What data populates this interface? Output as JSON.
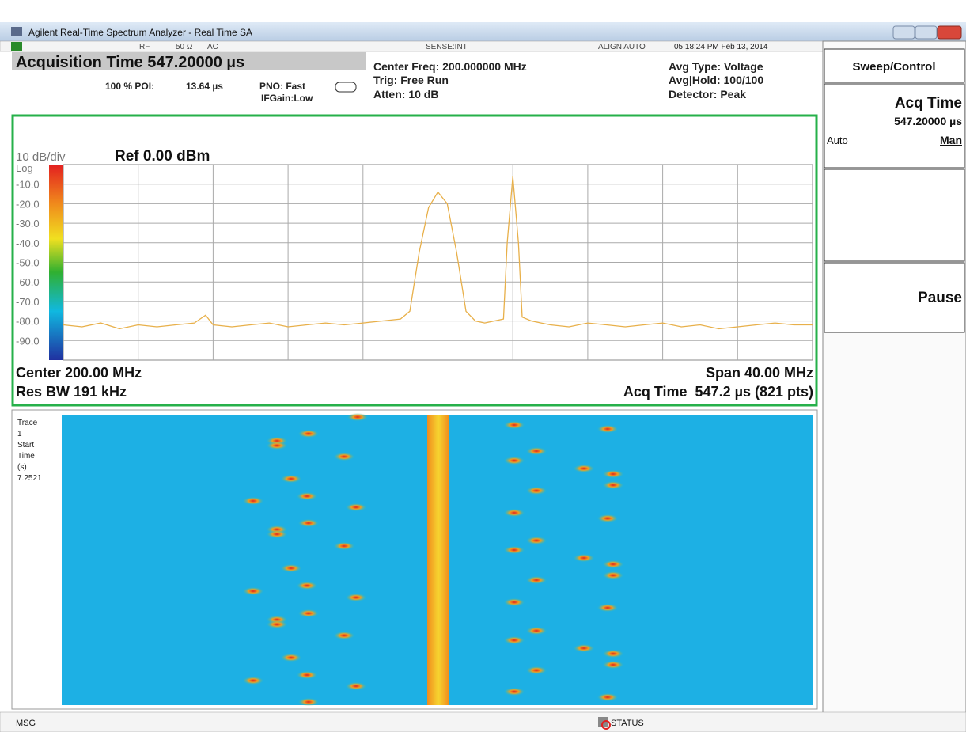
{
  "window": {
    "title": "Agilent Real-Time Spectrum Analyzer - Real Time SA"
  },
  "status_row": [
    "RF",
    "50 Ω",
    "AC",
    "SENSE:INT",
    "ALIGN AUTO",
    "05:18:24 PM Feb 13, 2014"
  ],
  "header": {
    "acquisition": "Acquisition Time 547.20000 µs",
    "poi": "100 % POI:",
    "poi_time": "13.64 µs",
    "pno": "PNO: Fast",
    "ifgain": "IFGain:Low",
    "center_freq": "Center Freq: 200.000000 MHz",
    "trig": "Trig: Free Run",
    "atten": "Atten: 10 dB",
    "avg_type": "Avg Type: Voltage",
    "avg_hold": "Avg|Hold: 100/100",
    "detector": "Detector: Peak"
  },
  "softkeys": {
    "menu": "Sweep/Control",
    "acq_title": "Acq Time",
    "acq_value": "547.20000 µs",
    "auto": "Auto",
    "man": "Man",
    "pause": "Pause"
  },
  "chart_data": {
    "type": "line",
    "scale_label": "10 dB/div",
    "ref_label": "Ref 0.00 dBm",
    "scale_type": "Log",
    "x": [
      180,
      181,
      182,
      183,
      184,
      185,
      186,
      187,
      187.6,
      188,
      189,
      190,
      191,
      192,
      193,
      194,
      195,
      196,
      197,
      198,
      198.5,
      199,
      199.5,
      200,
      200.5,
      201,
      201.5,
      202,
      202.5,
      203,
      203.5,
      203.7,
      204,
      204.3,
      204.5,
      205,
      206,
      207,
      208,
      209,
      210,
      211,
      212,
      213,
      214,
      215,
      216,
      217,
      218,
      219,
      220
    ],
    "series": [
      {
        "color": "#e8b04a",
        "values": [
          -82,
          -83,
          -81,
          -84,
          -82,
          -83,
          -82,
          -81,
          -77,
          -82,
          -83,
          -82,
          -81,
          -83,
          -82,
          -81,
          -82,
          -81,
          -80,
          -79,
          -75,
          -45,
          -22,
          -14,
          -20,
          -45,
          -75,
          -80,
          -81,
          -80,
          -79,
          -40,
          -6,
          -40,
          -78,
          -80,
          -82,
          -83,
          -81,
          -82,
          -83,
          -82,
          -81,
          -83,
          -82,
          -84,
          -83,
          -82,
          -81,
          -82,
          -82
        ]
      }
    ],
    "xlim": [
      180,
      220
    ],
    "ylim": [
      -100,
      0
    ],
    "yticks": [
      {
        "value": -10,
        "label": "-10.0"
      },
      {
        "value": -20,
        "label": "-20.0"
      },
      {
        "value": -30,
        "label": "-30.0"
      },
      {
        "value": -40,
        "label": "-40.0"
      },
      {
        "value": -50,
        "label": "-50.0"
      },
      {
        "value": -60,
        "label": "-60.0"
      },
      {
        "value": -70,
        "label": "-70.0"
      },
      {
        "value": -80,
        "label": "-80.0"
      },
      {
        "value": -90,
        "label": "-90.0"
      }
    ],
    "grid": true,
    "footer": {
      "center": "Center 200.00 MHz",
      "rbw": "Res BW 191 kHz",
      "span": "Span 40.00 MHz",
      "acq": "Acq Time  547.2 µs (821 pts)"
    }
  },
  "waterfall": {
    "labels": [
      "Trace",
      "1",
      "Start",
      "Time",
      "(s)",
      "7.2521"
    ]
  },
  "bottom_bar": {
    "msg": "MSG",
    "status": "STATUS"
  }
}
